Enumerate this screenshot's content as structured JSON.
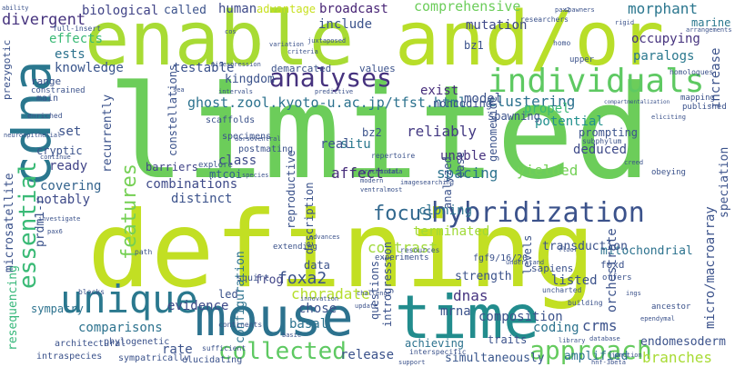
{
  "words": [
    {
      "text": "limited",
      "color": "#6ccd5a"
    },
    {
      "text": "defining",
      "color": "#c2df23"
    },
    {
      "text": "enable",
      "color": "#a8db34"
    },
    {
      "text": "and/or",
      "color": "#b8de29"
    },
    {
      "text": "cdna",
      "color": "#2a778e"
    },
    {
      "text": "mouse",
      "color": "#2c728e"
    },
    {
      "text": "time",
      "color": "#228c8d"
    },
    {
      "text": "unique",
      "color": "#2a788e"
    },
    {
      "text": "individuals",
      "color": "#5ec962"
    },
    {
      "text": "analyses",
      "color": "#46327e"
    },
    {
      "text": "collected",
      "color": "#5ec962"
    },
    {
      "text": "approach",
      "color": "#65cb5e"
    },
    {
      "text": "hybridization",
      "color": "#3b528b"
    },
    {
      "text": "essential",
      "color": "#3aba76"
    },
    {
      "text": "features",
      "color": "#75d054"
    },
    {
      "text": "focus",
      "color": "#31688e"
    },
    {
      "text": "ghost.zool.kyoto-u.ac.jp/tfst.html",
      "color": "#2c728e"
    },
    {
      "text": "divergent",
      "color": "#46337e"
    },
    {
      "text": "biological",
      "color": "#404387"
    },
    {
      "text": "effects",
      "color": "#3aba76"
    },
    {
      "text": "ests",
      "color": "#2c728e"
    },
    {
      "text": "knowledge",
      "color": "#39558c"
    },
    {
      "text": "called",
      "color": "#3b528b"
    },
    {
      "text": "human",
      "color": "#3e4a89"
    },
    {
      "text": "advantage",
      "color": "#c8e020"
    },
    {
      "text": "broadcast",
      "color": "#482475"
    },
    {
      "text": "include",
      "color": "#3b528b"
    },
    {
      "text": "comprehensive",
      "color": "#6ccd5a"
    },
    {
      "text": "mutation",
      "color": "#3f4889"
    },
    {
      "text": "morphant",
      "color": "#2a768e"
    },
    {
      "text": "kingdom",
      "color": "#3b528b"
    },
    {
      "text": "testable",
      "color": "#3b528b"
    },
    {
      "text": "clustering",
      "color": "#2c728e"
    },
    {
      "text": "potential",
      "color": "#21908d"
    },
    {
      "text": "propel",
      "color": "#3aba76"
    },
    {
      "text": "exist",
      "color": "#472d7b"
    },
    {
      "text": "model",
      "color": "#3b528b"
    },
    {
      "text": "paralogs",
      "color": "#2a788e"
    },
    {
      "text": "occupying",
      "color": "#46337e"
    },
    {
      "text": "marine",
      "color": "#2a788e"
    },
    {
      "text": "reliably",
      "color": "#443a83"
    },
    {
      "text": "situ",
      "color": "#2a788e"
    },
    {
      "text": "affect",
      "color": "#472d7b"
    },
    {
      "text": "unable",
      "color": "#46327e"
    },
    {
      "text": "spacing",
      "color": "#2c728e"
    },
    {
      "text": "yielded",
      "color": "#73d056"
    },
    {
      "text": "deduced",
      "color": "#3e4a89"
    },
    {
      "text": "ready",
      "color": "#404387"
    },
    {
      "text": "covering",
      "color": "#33638d"
    },
    {
      "text": "notably",
      "color": "#3e4a89"
    },
    {
      "text": "combinations",
      "color": "#3e4a89"
    },
    {
      "text": "distinct",
      "color": "#3b528b"
    },
    {
      "text": "class",
      "color": "#3e4a89"
    },
    {
      "text": "mtcoi",
      "color": "#35608d"
    },
    {
      "text": "barriers",
      "color": "#404387"
    },
    {
      "text": "cloning",
      "color": "#2c728e"
    },
    {
      "text": "contrast",
      "color": "#a0da39"
    },
    {
      "text": "terminated",
      "color": "#a0da39"
    },
    {
      "text": "mitochondrial",
      "color": "#2c728e"
    },
    {
      "text": "transduction",
      "color": "#3b528b"
    },
    {
      "text": "foxa2",
      "color": "#3b528b"
    },
    {
      "text": "frog",
      "color": "#414487"
    },
    {
      "text": "choradate",
      "color": "#b5de2b"
    },
    {
      "text": "evidence",
      "color": "#3e4a89"
    },
    {
      "text": "chose",
      "color": "#3b528b"
    },
    {
      "text": "basal",
      "color": "#2c728e"
    },
    {
      "text": "dnas",
      "color": "#463480"
    },
    {
      "text": "mrna",
      "color": "#3b528b"
    },
    {
      "text": "strength",
      "color": "#3b528b"
    },
    {
      "text": "orchestrate",
      "color": "#3b528b"
    },
    {
      "text": "listed",
      "color": "#3b528b"
    },
    {
      "text": "composition",
      "color": "#3b528b"
    },
    {
      "text": "coding",
      "color": "#2c728e"
    },
    {
      "text": "crms",
      "color": "#3b528b"
    },
    {
      "text": "comparisons",
      "color": "#2c728e"
    },
    {
      "text": "rate",
      "color": "#3b528b"
    },
    {
      "text": "release",
      "color": "#3b528b"
    },
    {
      "text": "simultaneously",
      "color": "#39568c"
    },
    {
      "text": "amplified",
      "color": "#2c728e"
    },
    {
      "text": "branches",
      "color": "#a8db34"
    },
    {
      "text": "endomesoderm",
      "color": "#3b528b"
    },
    {
      "text": "sympatry",
      "color": "#2c728e"
    },
    {
      "text": "achieving",
      "color": "#2c728e"
    },
    {
      "text": "resequencing",
      "color": "#35b779"
    },
    {
      "text": "microsatellite",
      "color": "#3b528b"
    },
    {
      "text": "prdm1-r",
      "color": "#3b528b"
    },
    {
      "text": "configuration",
      "color": "#2c728e"
    },
    {
      "text": "recurrently",
      "color": "#3b528b"
    },
    {
      "text": "constellations",
      "color": "#3b528b"
    },
    {
      "text": "reproductive",
      "color": "#3b528b"
    },
    {
      "text": "description",
      "color": "#3b528b"
    },
    {
      "text": "analyzed",
      "color": "#3b528b"
    },
    {
      "text": "ease",
      "color": "#3b528b"
    },
    {
      "text": "genomewide",
      "color": "#3b528b"
    },
    {
      "text": "increase",
      "color": "#3b528b"
    },
    {
      "text": "speciation",
      "color": "#3b528b"
    },
    {
      "text": "micro/macroarray",
      "color": "#3b528b"
    },
    {
      "text": "introgression",
      "color": "#3b528b"
    },
    {
      "text": "levels",
      "color": "#3b528b"
    },
    {
      "text": "questions",
      "color": "#3b528b"
    },
    {
      "text": "prezygotic",
      "color": "#3b528b"
    },
    {
      "text": "range",
      "color": "#3b528b"
    },
    {
      "text": "set",
      "color": "#3b528b"
    },
    {
      "text": "cryptic",
      "color": "#3b528b"
    },
    {
      "text": "demarcated",
      "color": "#3b528b"
    },
    {
      "text": "values",
      "color": "#3b528b"
    },
    {
      "text": "noncoding",
      "color": "#3b528b"
    },
    {
      "text": "bz1",
      "color": "#3b528b"
    },
    {
      "text": "bz2",
      "color": "#3b528b"
    },
    {
      "text": "real",
      "color": "#3b528b"
    },
    {
      "text": "spawning",
      "color": "#3b528b"
    },
    {
      "text": "prompting",
      "color": "#3b528b"
    },
    {
      "text": "led",
      "color": "#3b528b"
    },
    {
      "text": "data",
      "color": "#3b528b"
    },
    {
      "text": "traits",
      "color": "#3b528b"
    },
    {
      "text": "sapiens",
      "color": "#3b528b"
    },
    {
      "text": "foxd",
      "color": "#3b528b"
    },
    {
      "text": "phylogenetic",
      "color": "#3b528b"
    },
    {
      "text": "intraspecies",
      "color": "#3b528b"
    },
    {
      "text": "architectural",
      "color": "#3b528b"
    },
    {
      "text": "sympatrically",
      "color": "#3b528b"
    },
    {
      "text": "elucidating",
      "color": "#3b528b"
    },
    {
      "text": "fgf9/16/20",
      "color": "#3b528b"
    },
    {
      "text": "squirt",
      "color": "#3b528b"
    },
    {
      "text": "extending",
      "color": "#3b528b"
    },
    {
      "text": "experiments",
      "color": "#3b528b"
    },
    {
      "text": "scaffolds",
      "color": "#3b528b"
    },
    {
      "text": "specimens",
      "color": "#3b528b"
    },
    {
      "text": "postmating",
      "color": "#3b528b"
    },
    {
      "text": "explore",
      "color": "#3b528b"
    },
    {
      "text": "main",
      "color": "#3b528b"
    },
    {
      "text": "constrained",
      "color": "#3b528b"
    },
    {
      "text": "enriched",
      "color": "#3b528b"
    },
    {
      "text": "ancestor",
      "color": "#3b528b"
    },
    {
      "text": "obeying",
      "color": "#3b528b"
    },
    {
      "text": "subphylum",
      "color": "#3b528b"
    },
    {
      "text": "mapping",
      "color": "#3b528b"
    },
    {
      "text": "published",
      "color": "#3b528b"
    },
    {
      "text": "homologues",
      "color": "#3b528b"
    },
    {
      "text": "upper",
      "color": "#3b528b"
    },
    {
      "text": "homo",
      "color": "#3b528b"
    },
    {
      "text": "researchers",
      "color": "#3b528b"
    },
    {
      "text": "full-insert",
      "color": "#3b528b"
    },
    {
      "text": "neuroepithelial",
      "color": "#3b528b"
    },
    {
      "text": "ability",
      "color": "#3b528b"
    },
    {
      "text": "investigate",
      "color": "#3b528b"
    },
    {
      "text": "continue",
      "color": "#3b528b"
    },
    {
      "text": "path",
      "color": "#3b528b"
    },
    {
      "text": "blocks",
      "color": "#3b528b"
    },
    {
      "text": "basic",
      "color": "#3b528b"
    },
    {
      "text": "innovation",
      "color": "#3b528b"
    },
    {
      "text": "sufficient",
      "color": "#3b528b"
    },
    {
      "text": "continents",
      "color": "#3b528b"
    },
    {
      "text": "update",
      "color": "#3b528b"
    },
    {
      "text": "challenge",
      "color": "#3b528b"
    },
    {
      "text": "understand",
      "color": "#3b528b"
    },
    {
      "text": "interspecific",
      "color": "#3b528b"
    },
    {
      "text": "support",
      "color": "#3b528b"
    },
    {
      "text": "library",
      "color": "#3b528b"
    },
    {
      "text": "database",
      "color": "#3b528b"
    },
    {
      "text": "junction",
      "color": "#3b528b"
    },
    {
      "text": "hnf-3beta",
      "color": "#3b528b"
    },
    {
      "text": "ependymal",
      "color": "#3b528b"
    },
    {
      "text": "building",
      "color": "#3b528b"
    },
    {
      "text": "uncharted",
      "color": "#3b528b"
    },
    {
      "text": "offers",
      "color": "#3b528b"
    },
    {
      "text": "repertoire",
      "color": "#3b528b"
    },
    {
      "text": "urochordata",
      "color": "#3b528b"
    },
    {
      "text": "modern",
      "color": "#3b528b"
    },
    {
      "text": "ventralmost",
      "color": "#3b528b"
    },
    {
      "text": "total",
      "color": "#3b528b"
    },
    {
      "text": "resources",
      "color": "#3b528b"
    },
    {
      "text": "floor",
      "color": "#3b528b"
    },
    {
      "text": "advances",
      "color": "#3b528b"
    },
    {
      "text": "predictive",
      "color": "#3b528b"
    },
    {
      "text": "intervals",
      "color": "#3b528b"
    },
    {
      "text": "misexpression",
      "color": "#3b528b"
    },
    {
      "text": "juxtaposed",
      "color": "#3b528b"
    },
    {
      "text": "criteria",
      "color": "#3b528b"
    },
    {
      "text": "variation",
      "color": "#3b528b"
    },
    {
      "text": "cos",
      "color": "#3b528b"
    },
    {
      "text": "spawners",
      "color": "#3b528b"
    },
    {
      "text": "rigid",
      "color": "#3b528b"
    },
    {
      "text": "arrangements",
      "color": "#3b528b"
    },
    {
      "text": "compartmentalization",
      "color": "#3b528b"
    },
    {
      "text": "eliciting",
      "color": "#3b528b"
    },
    {
      "text": "dorsoventral",
      "color": "#3b528b"
    },
    {
      "text": "species",
      "color": "#3b528b"
    },
    {
      "text": "sea",
      "color": "#3b528b"
    },
    {
      "text": "pax6",
      "color": "#3b528b"
    },
    {
      "text": "ings",
      "color": "#3b528b"
    },
    {
      "text": "pax2",
      "color": "#3b528b"
    },
    {
      "text": "creed",
      "color": "#3b528b"
    },
    {
      "text": "imagesearching",
      "color": "#3b528b"
    }
  ]
}
